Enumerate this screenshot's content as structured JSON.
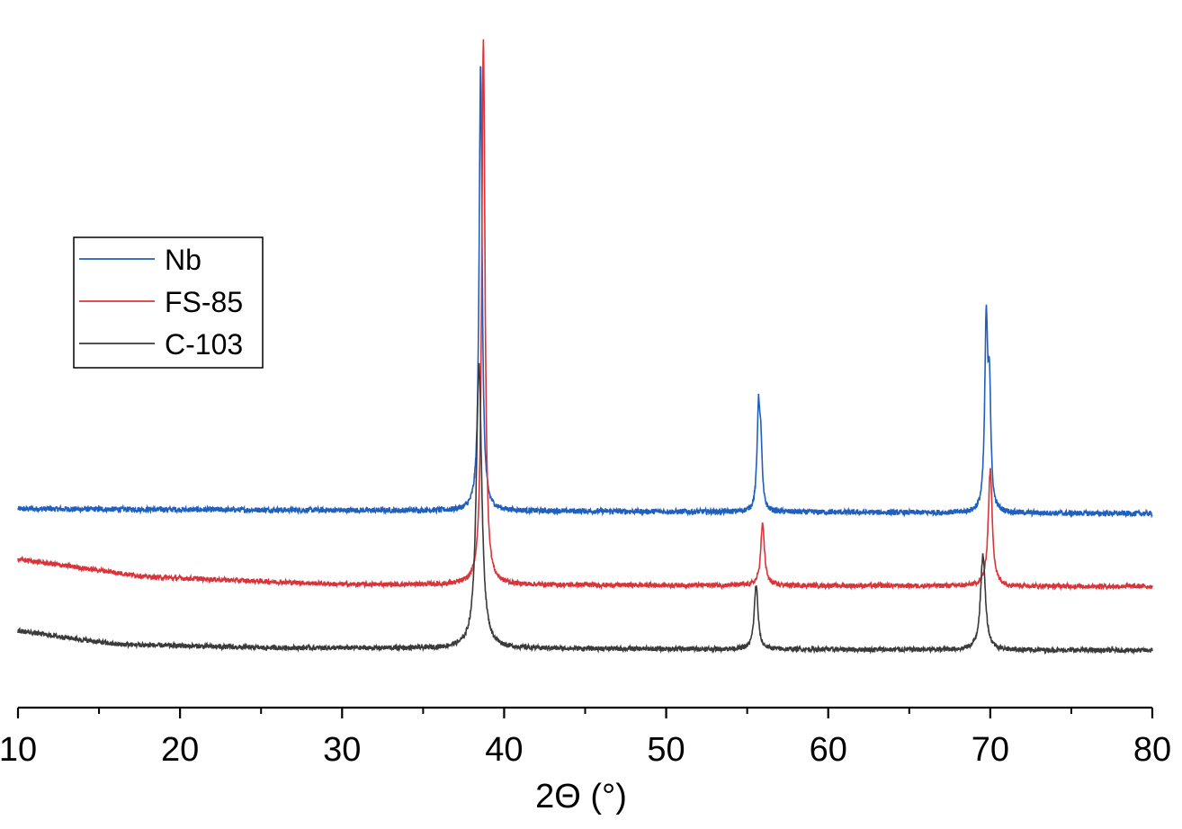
{
  "chart_data": {
    "type": "line",
    "xlabel": "2Θ (°)",
    "ylabel": "",
    "xlim": [
      10,
      80
    ],
    "y_axis_shown": false,
    "grid": false,
    "legend_position": "left",
    "x_ticks": [
      10,
      20,
      30,
      40,
      50,
      60,
      70,
      80
    ],
    "x_tick_labels": [
      "10",
      "20",
      "30",
      "40",
      "50",
      "60",
      "70",
      "80"
    ],
    "x_minor_tick_step": 5,
    "ylim": [
      0,
      100
    ],
    "series": [
      {
        "name": "Nb",
        "color": "#1f5fbf",
        "baseline": [
          [
            10,
            29.2
          ],
          [
            80,
            28.5
          ]
        ],
        "noise": 0.4,
        "peaks": [
          {
            "x": 38.55,
            "height": 66.0,
            "width": 0.11
          },
          {
            "x": 55.7,
            "height": 15.0,
            "width": 0.11
          },
          {
            "x": 55.85,
            "height": 7.5,
            "width": 0.09
          },
          {
            "x": 69.75,
            "height": 27.0,
            "width": 0.11
          },
          {
            "x": 69.95,
            "height": 16.5,
            "width": 0.1
          }
        ]
      },
      {
        "name": "FS-85",
        "color": "#d9343a",
        "baseline": [
          [
            10,
            21.8
          ],
          [
            18,
            19.2
          ],
          [
            30,
            18.1
          ],
          [
            80,
            17.8
          ]
        ],
        "noise": 0.35,
        "peaks": [
          {
            "x": 38.72,
            "height": 80.0,
            "width": 0.12
          },
          {
            "x": 55.95,
            "height": 9.0,
            "width": 0.14
          },
          {
            "x": 70.0,
            "height": 17.0,
            "width": 0.15
          }
        ]
      },
      {
        "name": "C-103",
        "color": "#3a3a3a",
        "baseline": [
          [
            10,
            11.3
          ],
          [
            16,
            9.3
          ],
          [
            25,
            8.8
          ],
          [
            80,
            8.4
          ]
        ],
        "noise": 0.35,
        "peaks": [
          {
            "x": 38.45,
            "height": 42.0,
            "width": 0.2
          },
          {
            "x": 55.55,
            "height": 9.5,
            "width": 0.14
          },
          {
            "x": 69.55,
            "height": 14.0,
            "width": 0.18
          }
        ]
      }
    ]
  }
}
